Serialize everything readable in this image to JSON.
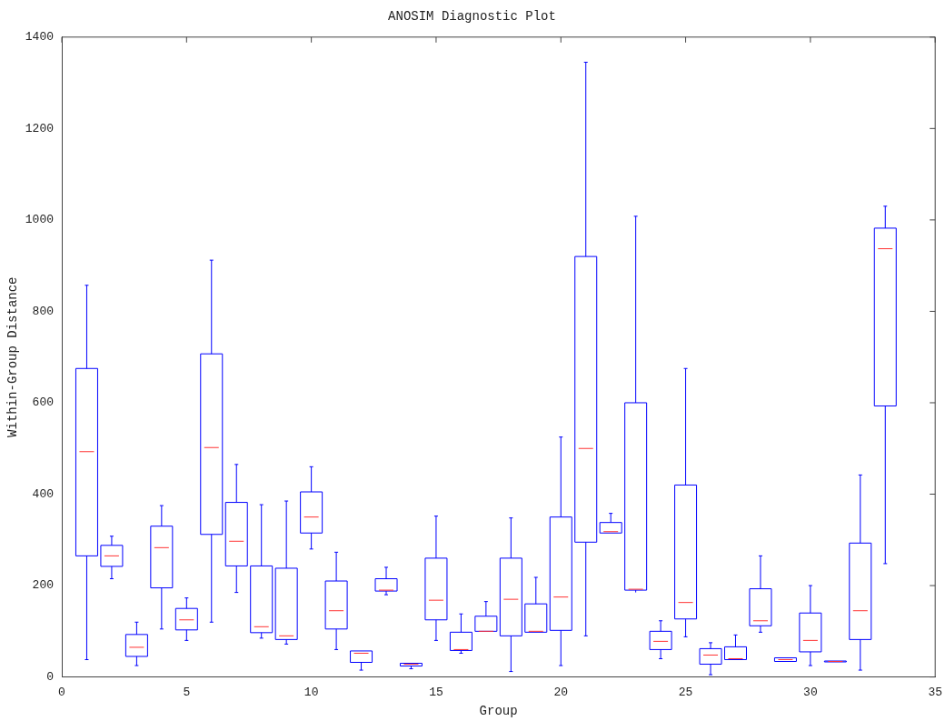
{
  "chart_data": {
    "type": "box",
    "title": "ANOSIM Diagnostic Plot",
    "xlabel": "Group",
    "ylabel": "Within-Group Distance",
    "x": [
      1,
      2,
      3,
      4,
      5,
      6,
      7,
      8,
      9,
      10,
      11,
      12,
      13,
      14,
      15,
      16,
      17,
      18,
      19,
      20,
      21,
      22,
      23,
      24,
      25,
      26,
      27,
      28,
      29,
      30,
      31,
      32,
      33
    ],
    "xlim": [
      0,
      35
    ],
    "xticks": [
      0,
      5,
      10,
      15,
      20,
      25,
      30,
      35
    ],
    "ylim": [
      0,
      1400
    ],
    "yticks": [
      0,
      200,
      400,
      600,
      800,
      1000,
      1200,
      1400
    ],
    "grid": false,
    "legend": false,
    "series": [
      {
        "color": "#0000ff",
        "boxes": [
          {
            "low": 38,
            "q1": 265,
            "median": 493,
            "q3": 675,
            "high": 857
          },
          {
            "low": 215,
            "q1": 242,
            "median": 265,
            "q3": 288,
            "high": 308
          },
          {
            "low": 25,
            "q1": 45,
            "median": 65,
            "q3": 93,
            "high": 120
          },
          {
            "low": 105,
            "q1": 195,
            "median": 283,
            "q3": 330,
            "high": 375
          },
          {
            "low": 80,
            "q1": 103,
            "median": 125,
            "q3": 150,
            "high": 173
          },
          {
            "low": 120,
            "q1": 312,
            "median": 502,
            "q3": 707,
            "high": 912
          },
          {
            "low": 185,
            "q1": 243,
            "median": 297,
            "q3": 382,
            "high": 465
          },
          {
            "low": 85,
            "q1": 97,
            "median": 110,
            "q3": 243,
            "high": 377
          },
          {
            "low": 72,
            "q1": 82,
            "median": 90,
            "q3": 238,
            "high": 385
          },
          {
            "low": 280,
            "q1": 315,
            "median": 350,
            "q3": 405,
            "high": 460
          },
          {
            "low": 60,
            "q1": 105,
            "median": 145,
            "q3": 210,
            "high": 273
          },
          {
            "low": 15,
            "q1": 32,
            "median": 52,
            "q3": 57,
            "high": 60
          },
          {
            "low": 180,
            "q1": 188,
            "median": 190,
            "q3": 215,
            "high": 240
          },
          {
            "low": 18,
            "q1": 24,
            "median": 28,
            "q3": 30,
            "high": 32
          },
          {
            "low": 80,
            "q1": 125,
            "median": 168,
            "q3": 260,
            "high": 352
          },
          {
            "low": 52,
            "q1": 58,
            "median": 60,
            "q3": 98,
            "high": 138
          },
          {
            "low": 98,
            "q1": 100,
            "median": 100,
            "q3": 133,
            "high": 165
          },
          {
            "low": 12,
            "q1": 90,
            "median": 170,
            "q3": 260,
            "high": 348
          },
          {
            "low": 95,
            "q1": 98,
            "median": 100,
            "q3": 160,
            "high": 218
          },
          {
            "low": 25,
            "q1": 102,
            "median": 175,
            "q3": 350,
            "high": 525
          },
          {
            "low": 90,
            "q1": 295,
            "median": 500,
            "q3": 920,
            "high": 1345
          },
          {
            "low": 312,
            "q1": 315,
            "median": 318,
            "q3": 338,
            "high": 358
          },
          {
            "low": 185,
            "q1": 190,
            "median": 192,
            "q3": 600,
            "high": 1008
          },
          {
            "low": 40,
            "q1": 60,
            "median": 78,
            "q3": 100,
            "high": 123
          },
          {
            "low": 88,
            "q1": 127,
            "median": 163,
            "q3": 420,
            "high": 675
          },
          {
            "low": 5,
            "q1": 28,
            "median": 48,
            "q3": 62,
            "high": 75
          },
          {
            "low": 35,
            "q1": 38,
            "median": 40,
            "q3": 66,
            "high": 92
          },
          {
            "low": 98,
            "q1": 112,
            "median": 123,
            "q3": 193,
            "high": 265
          },
          {
            "low": 32,
            "q1": 34,
            "median": 38,
            "q3": 42,
            "high": 45
          },
          {
            "low": 25,
            "q1": 55,
            "median": 80,
            "q3": 140,
            "high": 200
          },
          {
            "low": 32,
            "q1": 33,
            "median": 34,
            "q3": 35,
            "high": 36
          },
          {
            "low": 15,
            "q1": 82,
            "median": 145,
            "q3": 293,
            "high": 442
          },
          {
            "low": 248,
            "q1": 593,
            "median": 937,
            "q3": 982,
            "high": 1030
          }
        ]
      }
    ]
  }
}
